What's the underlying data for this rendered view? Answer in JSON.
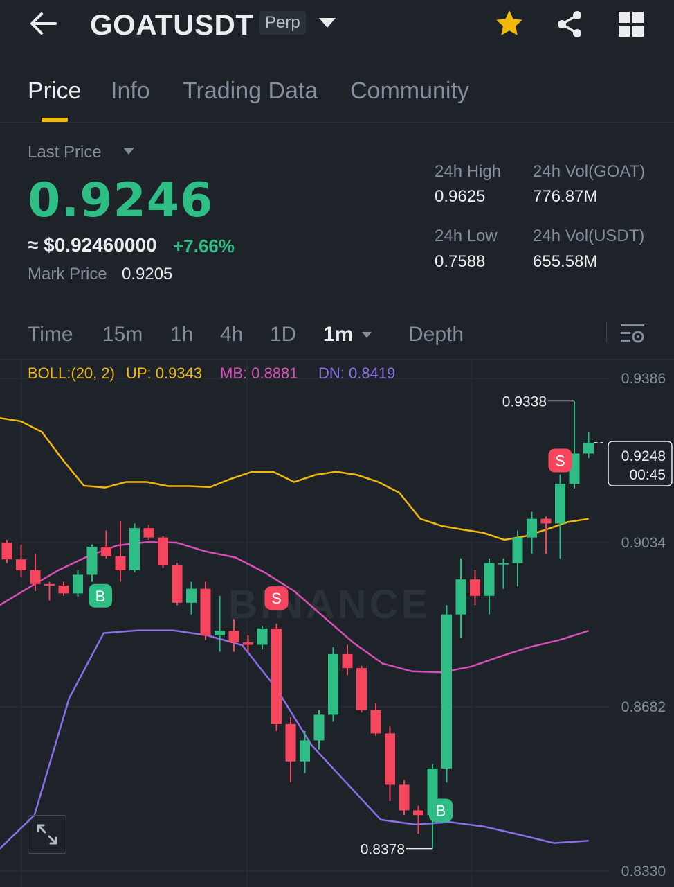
{
  "header": {
    "symbol": "GOATUSDT",
    "contract_type": "Perp",
    "icons": [
      "back-arrow-icon",
      "dropdown-triangle-icon",
      "favorite-star-icon",
      "share-icon",
      "grid-menu-icon"
    ],
    "favorite_color": "#f0b90b"
  },
  "tabs": [
    {
      "label": "Price",
      "active": true
    },
    {
      "label": "Info",
      "active": false
    },
    {
      "label": "Trading Data",
      "active": false
    },
    {
      "label": "Community",
      "active": false
    }
  ],
  "ticker": {
    "last_price_label": "Last Price",
    "last_price": "0.9246",
    "usd_price": "≈ $0.92460000",
    "change_pct": "+7.66%",
    "mark_price_label": "Mark Price",
    "mark_price": "0.9205",
    "high_label": "24h High",
    "high": "0.9625",
    "low_label": "24h Low",
    "low": "0.7588",
    "vol_base_label": "24h Vol(GOAT)",
    "vol_base": "776.87M",
    "vol_quote_label": "24h Vol(USDT)",
    "vol_quote": "655.58M",
    "up_color": "#2ebd85",
    "down_color": "#f6465d"
  },
  "intervals": {
    "items": [
      "Time",
      "15m",
      "1h",
      "4h",
      "1D",
      "1m",
      "Depth"
    ],
    "active": "1m"
  },
  "indicator": {
    "boll": "BOLL:(20, 2)",
    "up": "UP: 0.9343",
    "mb": "MB: 0.8881",
    "dn": "DN: 0.8419",
    "up_color": "#f0b90b",
    "mb_color": "#d84fb7",
    "dn_color": "#8b6ee8"
  },
  "chart_data": {
    "type": "candlestick",
    "y_ticks": [
      "0.9386",
      "0.9034",
      "0.8682",
      "0.8330"
    ],
    "ylim": [
      0.833,
      0.9386
    ],
    "current_price": "0.9248",
    "countdown": "00:45",
    "high_marker": "0.9338",
    "low_marker": "0.8378",
    "candles": [
      {
        "o": 0.9034,
        "h": 0.904,
        "l": 0.899,
        "c": 0.8998
      },
      {
        "o": 0.8998,
        "h": 0.903,
        "l": 0.896,
        "c": 0.8975
      },
      {
        "o": 0.8975,
        "h": 0.901,
        "l": 0.893,
        "c": 0.8945
      },
      {
        "o": 0.8945,
        "h": 0.895,
        "l": 0.891,
        "c": 0.8942
      },
      {
        "o": 0.8942,
        "h": 0.895,
        "l": 0.892,
        "c": 0.8925
      },
      {
        "o": 0.8925,
        "h": 0.8975,
        "l": 0.8918,
        "c": 0.8965
      },
      {
        "o": 0.8965,
        "h": 0.903,
        "l": 0.895,
        "c": 0.9025
      },
      {
        "o": 0.9025,
        "h": 0.906,
        "l": 0.9,
        "c": 0.9005
      },
      {
        "o": 0.9005,
        "h": 0.908,
        "l": 0.895,
        "c": 0.8975
      },
      {
        "o": 0.8975,
        "h": 0.9075,
        "l": 0.897,
        "c": 0.9065
      },
      {
        "o": 0.9065,
        "h": 0.9072,
        "l": 0.904,
        "c": 0.9045
      },
      {
        "o": 0.9045,
        "h": 0.9048,
        "l": 0.898,
        "c": 0.8985
      },
      {
        "o": 0.8985,
        "h": 0.899,
        "l": 0.89,
        "c": 0.8905
      },
      {
        "o": 0.8905,
        "h": 0.895,
        "l": 0.888,
        "c": 0.8935
      },
      {
        "o": 0.8935,
        "h": 0.895,
        "l": 0.8825,
        "c": 0.8835
      },
      {
        "o": 0.8835,
        "h": 0.892,
        "l": 0.88,
        "c": 0.8845
      },
      {
        "o": 0.8845,
        "h": 0.887,
        "l": 0.88,
        "c": 0.882
      },
      {
        "o": 0.882,
        "h": 0.8835,
        "l": 0.88,
        "c": 0.8815
      },
      {
        "o": 0.8815,
        "h": 0.8855,
        "l": 0.8805,
        "c": 0.885
      },
      {
        "o": 0.885,
        "h": 0.886,
        "l": 0.863,
        "c": 0.8645
      },
      {
        "o": 0.8645,
        "h": 0.866,
        "l": 0.852,
        "c": 0.8565
      },
      {
        "o": 0.8565,
        "h": 0.863,
        "l": 0.854,
        "c": 0.861
      },
      {
        "o": 0.861,
        "h": 0.8675,
        "l": 0.859,
        "c": 0.8665
      },
      {
        "o": 0.8665,
        "h": 0.881,
        "l": 0.865,
        "c": 0.8795
      },
      {
        "o": 0.8795,
        "h": 0.8815,
        "l": 0.875,
        "c": 0.8765
      },
      {
        "o": 0.8765,
        "h": 0.877,
        "l": 0.867,
        "c": 0.8675
      },
      {
        "o": 0.8675,
        "h": 0.869,
        "l": 0.862,
        "c": 0.8625
      },
      {
        "o": 0.8625,
        "h": 0.864,
        "l": 0.848,
        "c": 0.8515
      },
      {
        "o": 0.8515,
        "h": 0.8525,
        "l": 0.845,
        "c": 0.846
      },
      {
        "o": 0.846,
        "h": 0.847,
        "l": 0.841,
        "c": 0.845
      },
      {
        "o": 0.845,
        "h": 0.856,
        "l": 0.8378,
        "c": 0.855
      },
      {
        "o": 0.855,
        "h": 0.89,
        "l": 0.852,
        "c": 0.888
      },
      {
        "o": 0.888,
        "h": 0.9,
        "l": 0.883,
        "c": 0.8955
      },
      {
        "o": 0.8955,
        "h": 0.8975,
        "l": 0.89,
        "c": 0.892
      },
      {
        "o": 0.892,
        "h": 0.9,
        "l": 0.888,
        "c": 0.899
      },
      {
        "o": 0.899,
        "h": 0.9,
        "l": 0.8935,
        "c": 0.899
      },
      {
        "o": 0.899,
        "h": 0.906,
        "l": 0.894,
        "c": 0.9045
      },
      {
        "o": 0.9045,
        "h": 0.91,
        "l": 0.901,
        "c": 0.9085
      },
      {
        "o": 0.9085,
        "h": 0.909,
        "l": 0.901,
        "c": 0.9075
      },
      {
        "o": 0.9075,
        "h": 0.918,
        "l": 0.9,
        "c": 0.916
      },
      {
        "o": 0.916,
        "h": 0.9338,
        "l": 0.915,
        "c": 0.9225
      },
      {
        "o": 0.9225,
        "h": 0.927,
        "l": 0.9215,
        "c": 0.9248
      }
    ],
    "boll_up": [
      0.9301,
      0.9294,
      0.9271,
      0.9211,
      0.9156,
      0.9152,
      0.9164,
      0.9164,
      0.9155,
      0.9155,
      0.9153,
      0.9171,
      0.9186,
      0.9186,
      0.9164,
      0.9179,
      0.9186,
      0.9179,
      0.9164,
      0.9141,
      0.9085,
      0.907,
      0.9062,
      0.9055,
      0.904,
      0.9048,
      0.9062,
      0.9078,
      0.9085
    ],
    "boll_mid": [
      0.89,
      0.8938,
      0.8975,
      0.9005,
      0.9028,
      0.9035,
      0.9034,
      0.9015,
      0.9002,
      0.897,
      0.893,
      0.8875,
      0.882,
      0.8775,
      0.8758,
      0.8756,
      0.8768,
      0.879,
      0.881,
      0.8825,
      0.8845
    ],
    "boll_dn": [
      0.8378,
      0.845,
      0.87,
      0.884,
      0.8846,
      0.8846,
      0.8835,
      0.8814,
      0.872,
      0.86,
      0.852,
      0.844,
      0.843,
      0.8435,
      0.8425,
      0.8408,
      0.839,
      0.8395
    ],
    "signals": [
      {
        "label": "B",
        "type": "buy",
        "index": 6,
        "price": 0.892
      },
      {
        "label": "S",
        "type": "sell",
        "index": 19,
        "price": 0.8915
      },
      {
        "label": "B",
        "type": "buy",
        "index": 30,
        "price": 0.846
      },
      {
        "label": "S",
        "type": "sell",
        "index": 39,
        "price": 0.921
      }
    ],
    "watermark": "BINANCE"
  }
}
